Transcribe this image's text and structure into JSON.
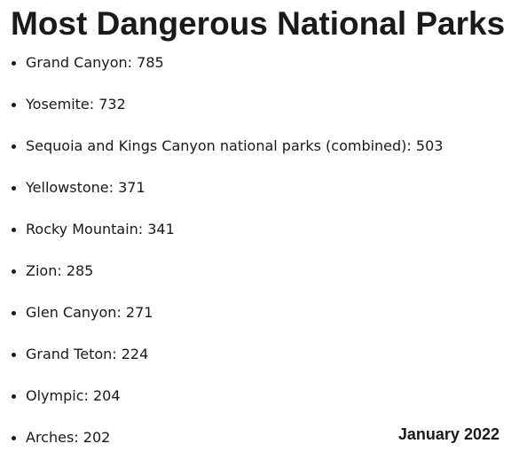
{
  "title": "Most Dangerous National Parks",
  "items": [
    "Grand Canyon: 785",
    "Yosemite: 732",
    "Sequoia and Kings Canyon national parks (combined): 503",
    "Yellowstone: 371",
    "Rocky Mountain: 341",
    "Zion: 285",
    "Glen Canyon: 271",
    "Grand Teton: 224",
    "Olympic: 204",
    "Arches: 202"
  ],
  "date": "January 2022"
}
